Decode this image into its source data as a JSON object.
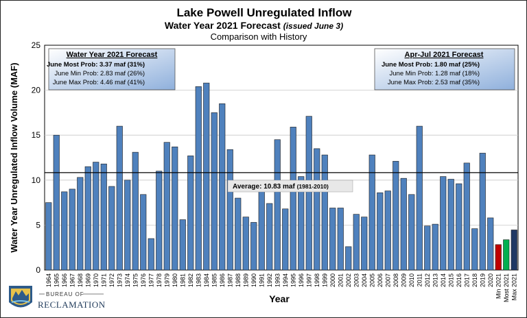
{
  "chart_data": {
    "type": "bar",
    "title": "Lake Powell Unregulated Inflow",
    "subtitle_main": "Water Year 2021 Forecast",
    "subtitle_issued": "(issued June 3)",
    "subtitle2": "Comparison with History",
    "xlabel": "Year",
    "ylabel": "Water Year Unregulated Inflow Volume (MAF)",
    "ylim": [
      0,
      25
    ],
    "yticks": [
      "0",
      "5",
      "10",
      "15",
      "20",
      "25"
    ],
    "grid": true,
    "categories": [
      "1964",
      "1965",
      "1966",
      "1967",
      "1968",
      "1969",
      "1970",
      "1971",
      "1972",
      "1973",
      "1974",
      "1975",
      "1976",
      "1977",
      "1978",
      "1979",
      "1980",
      "1981",
      "1982",
      "1983",
      "1984",
      "1985",
      "1986",
      "1987",
      "1988",
      "1989",
      "1990",
      "1991",
      "1992",
      "1993",
      "1994",
      "1995",
      "1996",
      "1997",
      "1998",
      "1999",
      "2000",
      "2001",
      "2002",
      "2003",
      "2004",
      "2005",
      "2006",
      "2007",
      "2008",
      "2009",
      "2010",
      "2011",
      "2012",
      "2013",
      "2014",
      "2015",
      "2016",
      "2017",
      "2018",
      "2019",
      "2020",
      "Min 2021",
      "Most 2021",
      "Max 2021"
    ],
    "values": [
      7.5,
      15.0,
      8.7,
      9.0,
      10.3,
      11.5,
      12.0,
      11.8,
      9.3,
      16.0,
      10.0,
      13.1,
      8.4,
      3.5,
      11.0,
      14.2,
      13.7,
      5.6,
      12.7,
      20.4,
      20.8,
      17.5,
      18.5,
      13.4,
      8.0,
      5.9,
      5.3,
      9.5,
      7.4,
      14.5,
      6.8,
      15.9,
      10.4,
      17.1,
      13.5,
      12.8,
      6.9,
      6.9,
      2.6,
      6.2,
      5.9,
      12.8,
      8.6,
      8.8,
      12.1,
      10.2,
      8.4,
      16.0,
      4.9,
      5.1,
      10.4,
      10.1,
      9.6,
      11.9,
      4.6,
      13.0,
      5.8,
      2.83,
      3.37,
      4.46
    ],
    "bar_colors": {
      "history": "#4f81bd",
      "min": "#c00000",
      "most": "#00b050",
      "max": "#1f3864"
    },
    "average": {
      "value": 10.83,
      "label": "Average:  10.83 maf",
      "period": "(1981-2010)"
    },
    "left_box": {
      "title": "Water Year 2021 Forecast",
      "lines": [
        "June Most Prob: 3.37 maf (31%)",
        "June Min Prob:  2.83 maf (26%)",
        "June Max Prob:  4.46 maf (41%)"
      ]
    },
    "right_box": {
      "title": "Apr-Jul 2021 Forecast",
      "lines": [
        "June Most Prob: 1.80 maf (25%)",
        "June Min Prob:  1.28 maf (18%)",
        "June Max Prob:  2.53 maf (35%)"
      ]
    }
  },
  "logo": {
    "top": "BUREAU OF",
    "bottom": "RECLAMATION"
  }
}
